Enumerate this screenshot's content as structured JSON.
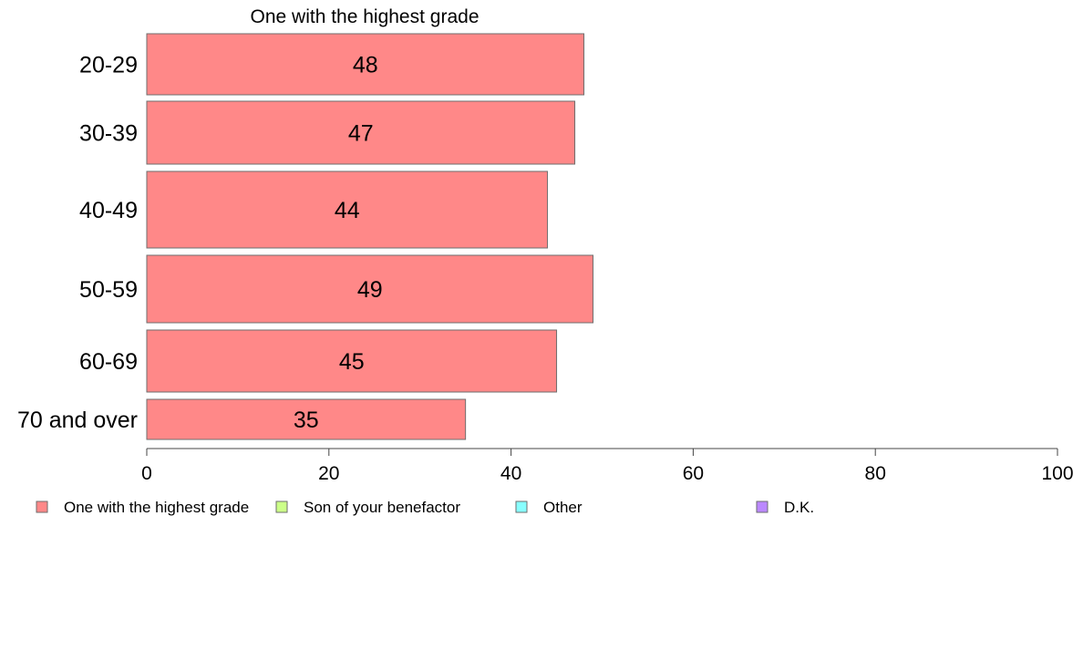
{
  "chart_data": {
    "type": "bar",
    "orientation": "horizontal",
    "title": "One with the highest grade",
    "categories": [
      "20-29",
      "30-39",
      "40-49",
      "50-59",
      "60-69",
      "70 and over"
    ],
    "series": [
      {
        "name": "One with the highest grade",
        "values": [
          48,
          47,
          44,
          49,
          45,
          35
        ],
        "color": "#ff8888"
      }
    ],
    "data_labels": [
      "48",
      "47",
      "44",
      "49",
      "45",
      "35"
    ],
    "xlim": [
      0,
      100
    ],
    "xticks": [
      0,
      20,
      40,
      60,
      80,
      100
    ],
    "xtick_labels": [
      "0",
      "20",
      "40",
      "60",
      "80",
      "100"
    ],
    "grid": false,
    "legend_position": "bottom",
    "legend": [
      {
        "name": "One with the highest grade",
        "color": "#ff8888"
      },
      {
        "name": "Son of your benefactor",
        "color": "#ccff88"
      },
      {
        "name": "Other",
        "color": "#88ffff"
      },
      {
        "name": "D.K.",
        "color": "#bb88ff"
      }
    ]
  }
}
